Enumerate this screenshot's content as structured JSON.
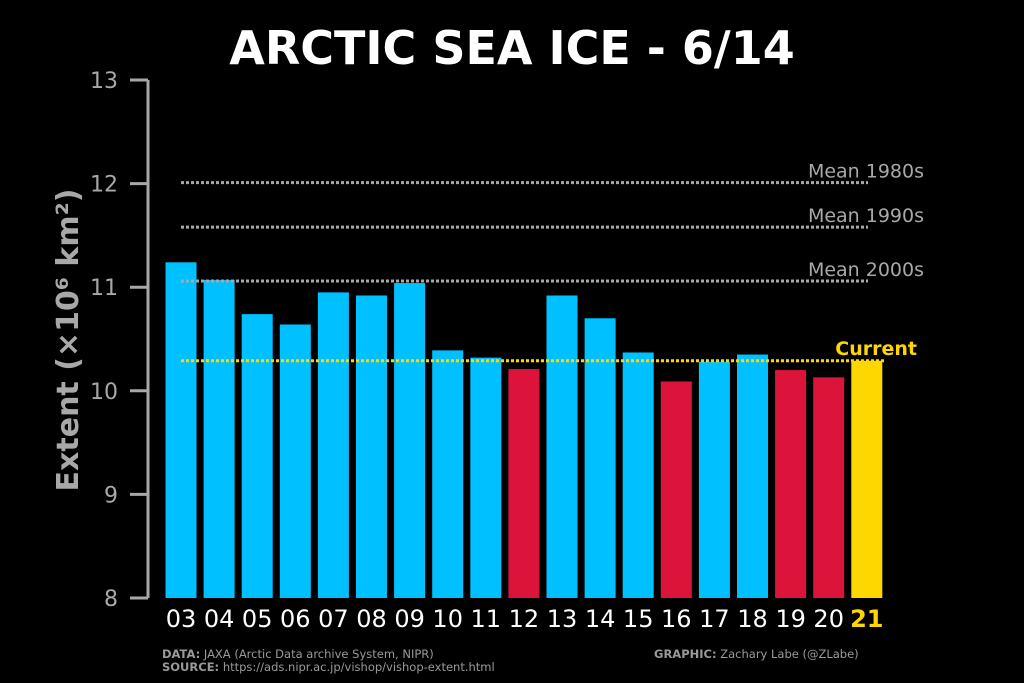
{
  "chart_data": {
    "type": "bar",
    "title": "ARCTIC SEA ICE - 6/14",
    "ylabel": "Extent (×10⁶ km²)",
    "ylabel_parts": {
      "main": "Extent (",
      "times": "×",
      "base": "10",
      "exp": "6",
      "unit": " km",
      "unit_exp": "2",
      "close": ")"
    },
    "xlabel": "",
    "ylim": [
      8,
      13
    ],
    "yticks": [
      8,
      9,
      10,
      11,
      12,
      13
    ],
    "categories": [
      "03",
      "04",
      "05",
      "06",
      "07",
      "08",
      "09",
      "10",
      "11",
      "12",
      "13",
      "14",
      "15",
      "16",
      "17",
      "18",
      "19",
      "20",
      "21"
    ],
    "values": [
      11.24,
      11.07,
      10.74,
      10.64,
      10.95,
      10.92,
      11.04,
      10.39,
      10.32,
      10.21,
      10.92,
      10.7,
      10.37,
      10.09,
      10.28,
      10.35,
      10.2,
      10.13,
      10.29
    ],
    "bar_status": [
      "above",
      "above",
      "above",
      "above",
      "above",
      "above",
      "above",
      "above",
      "above",
      "below",
      "above",
      "above",
      "above",
      "below",
      "above",
      "above",
      "below",
      "below",
      "current"
    ],
    "reference_lines": [
      {
        "label": "Mean 1980s",
        "value": 12.01
      },
      {
        "label": "Mean 1990s",
        "value": 11.58
      },
      {
        "label": "Mean 2000s",
        "value": 11.06
      }
    ],
    "current_line": {
      "label": "Current",
      "value": 10.29
    },
    "grid": false,
    "legend": "none"
  },
  "colors": {
    "above": "#00c0ff",
    "below": "#dc143c",
    "current": "#ffd700",
    "axis": "#a8a8a8",
    "ref": "#a8a8a8",
    "title": "#ffffff"
  },
  "footer": {
    "data_label": "DATA:",
    "data_text": "JAXA (Arctic Data archive System, NIPR)",
    "source_label": "SOURCE:",
    "source_text": "https://ads.nipr.ac.jp/vishop/vishop-extent.html",
    "graphic_label": "GRAPHIC:",
    "graphic_text": "Zachary Labe (@ZLabe)"
  }
}
